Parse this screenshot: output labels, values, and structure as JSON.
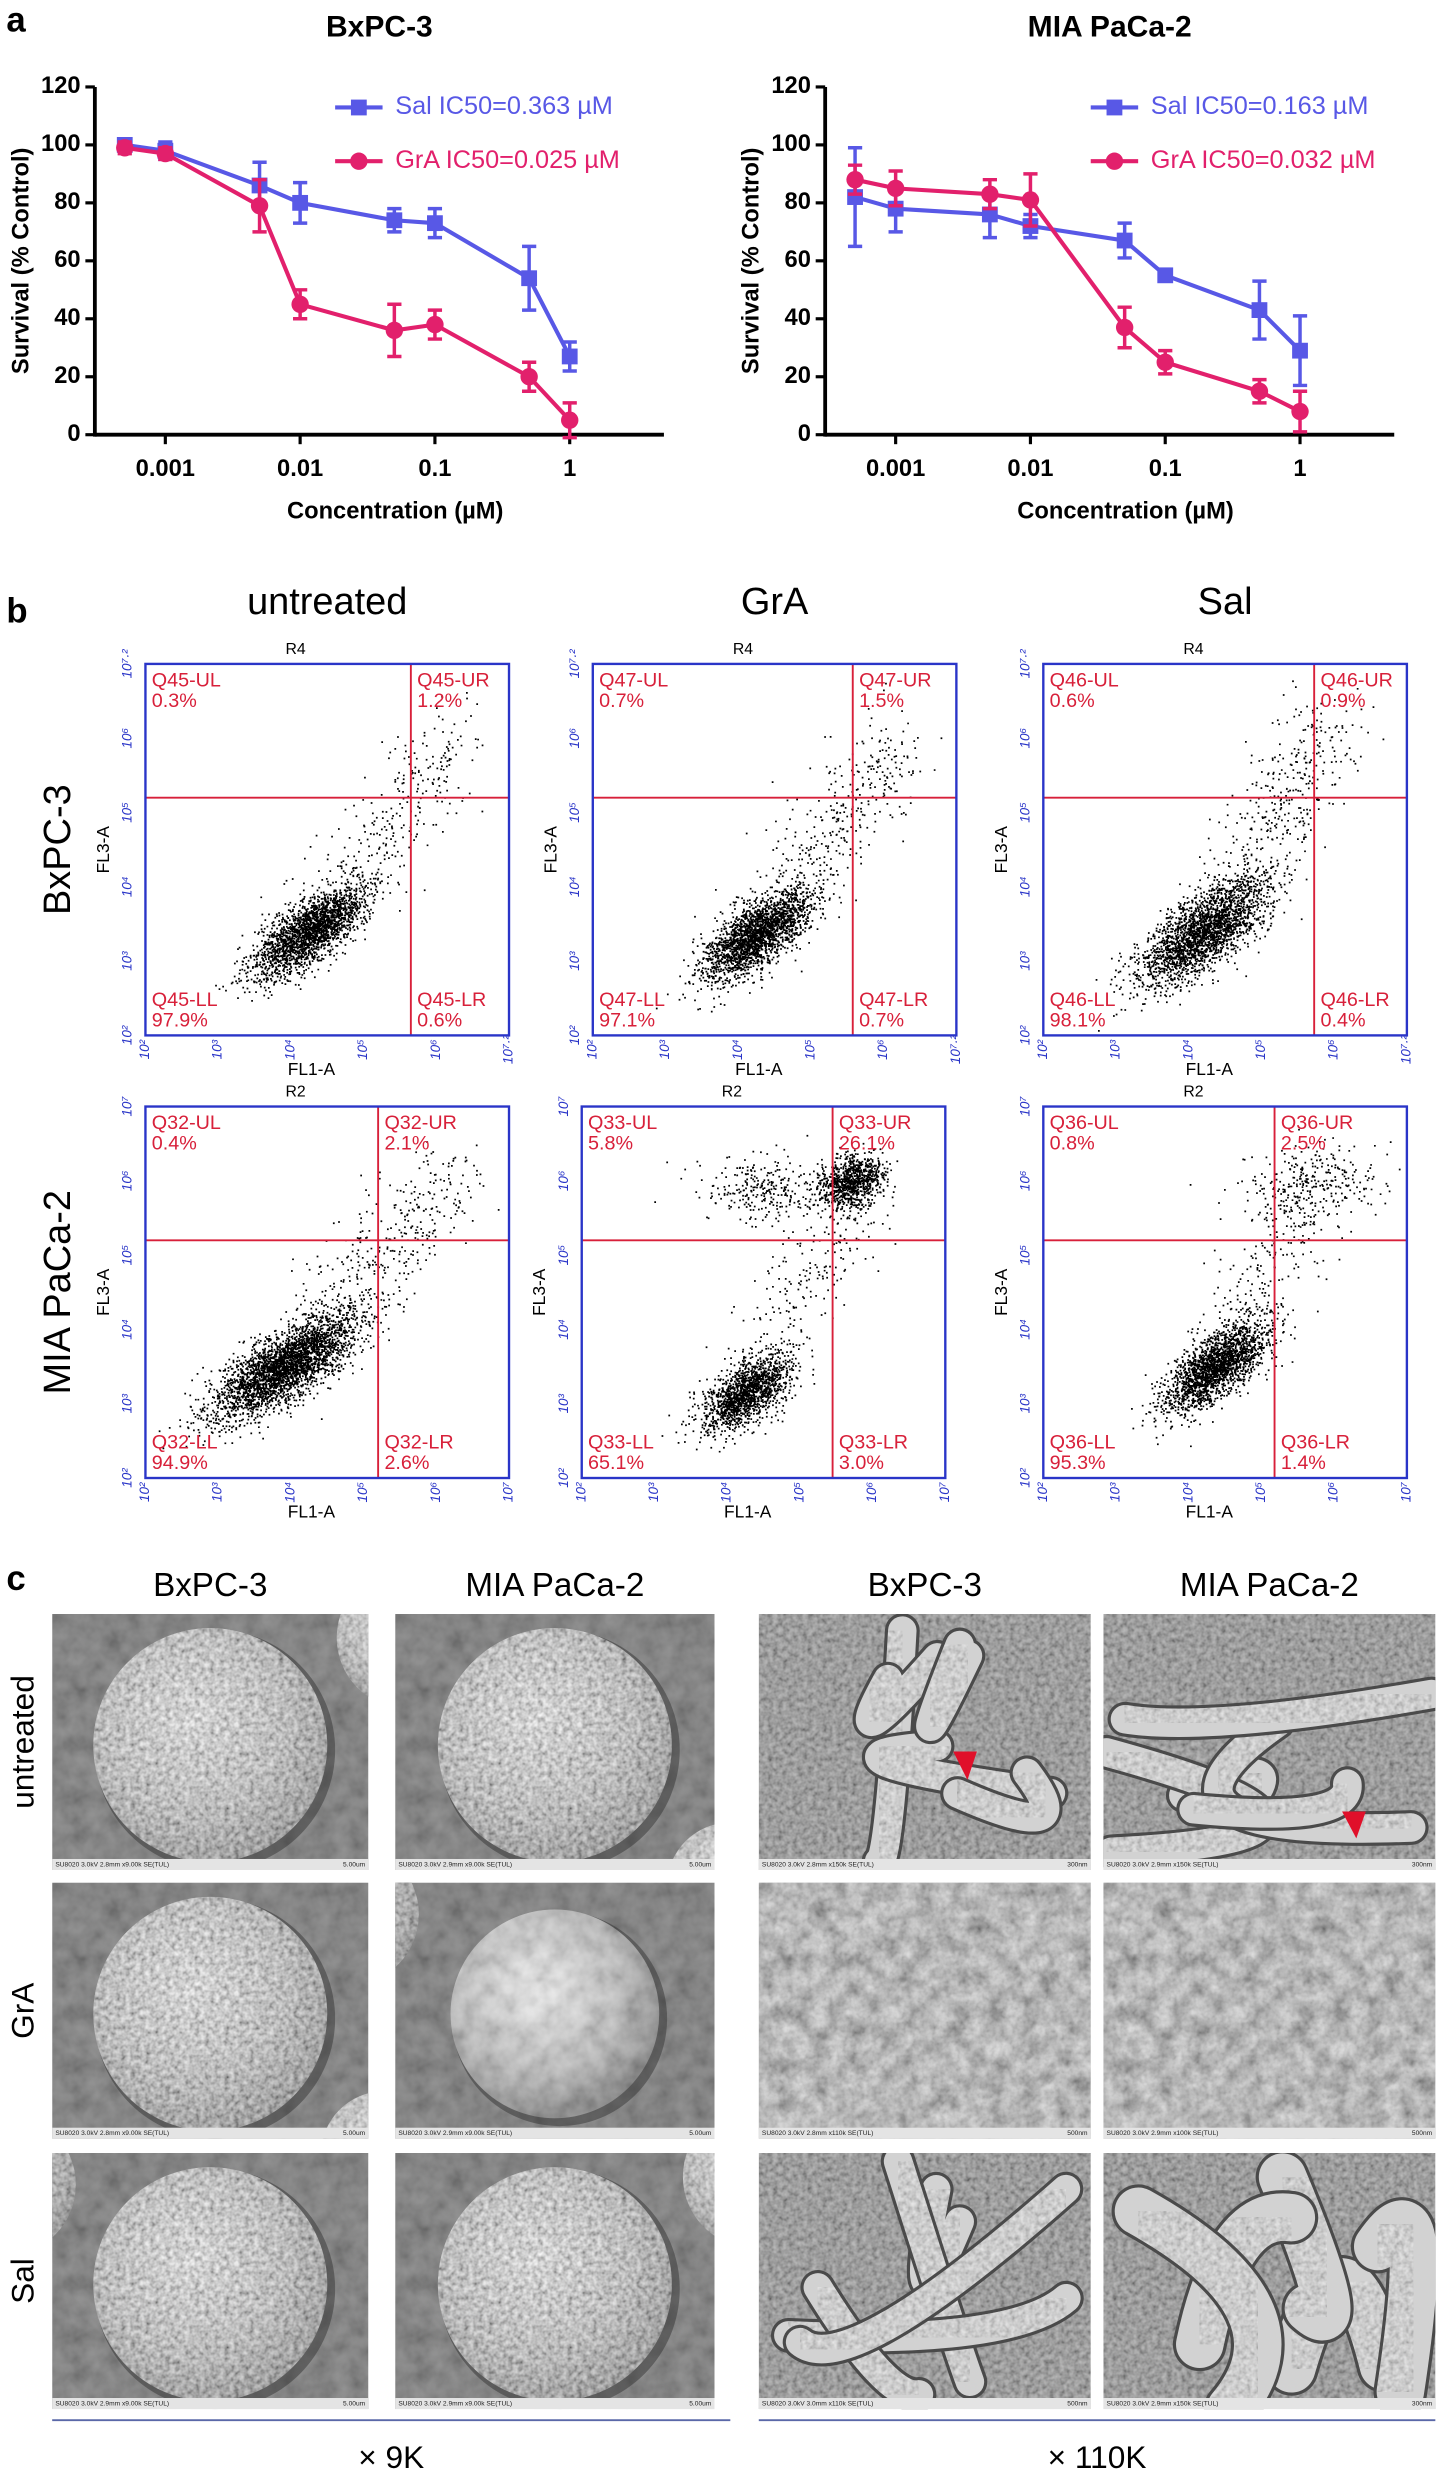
{
  "panel_labels": [
    "a",
    "b",
    "c"
  ],
  "chart_data": [
    {
      "type": "line",
      "title": "BxPC-3",
      "x_label": "Concentration (µM)",
      "y_label": "Survival (% Control)",
      "log_x": true,
      "x": [
        0.0005,
        0.001,
        0.005,
        0.01,
        0.05,
        0.1,
        0.5,
        1
      ],
      "xlim": [
        0.0003,
        5
      ],
      "xticks": [
        0.001,
        0.01,
        0.1,
        1
      ],
      "ylim": [
        0,
        120
      ],
      "yticks": [
        0,
        20,
        40,
        60,
        80,
        100,
        120
      ],
      "series": [
        {
          "name": "Sal  IC50=0.363 µM",
          "color": "#5858e6",
          "marker": "square",
          "values": [
            100,
            98,
            86,
            80,
            74,
            73,
            54,
            27
          ],
          "errors": [
            2,
            3,
            8,
            7,
            4,
            5,
            11,
            5
          ]
        },
        {
          "name": "GrA IC50=0.025 µM",
          "color": "#e2206c",
          "marker": "circle",
          "values": [
            99,
            97,
            79,
            45,
            36,
            38,
            20,
            5
          ],
          "errors": [
            2,
            2,
            9,
            5,
            9,
            5,
            5,
            6
          ]
        }
      ]
    },
    {
      "type": "line",
      "title": "MIA PaCa-2",
      "x_label": "Concentration (µM)",
      "y_label": "Survival (% Control)",
      "log_x": true,
      "x": [
        0.0005,
        0.001,
        0.005,
        0.01,
        0.05,
        0.1,
        0.5,
        1
      ],
      "xlim": [
        0.0003,
        5
      ],
      "xticks": [
        0.001,
        0.01,
        0.1,
        1
      ],
      "ylim": [
        0,
        120
      ],
      "yticks": [
        0,
        20,
        40,
        60,
        80,
        100,
        120
      ],
      "series": [
        {
          "name": "Sal  IC50=0.163 µM",
          "color": "#5858e6",
          "marker": "square",
          "values": [
            82,
            78,
            76,
            72,
            67,
            55,
            43,
            29
          ],
          "errors": [
            17,
            8,
            8,
            4,
            6,
            2,
            10,
            12
          ]
        },
        {
          "name": "GrA IC50=0.032 µM",
          "color": "#e2206c",
          "marker": "circle",
          "values": [
            88,
            85,
            83,
            81,
            37,
            25,
            15,
            8
          ],
          "errors": [
            5,
            6,
            5,
            9,
            7,
            4,
            4,
            7
          ]
        }
      ]
    }
  ],
  "flow": {
    "columns": [
      "untreated",
      "GrA",
      "Sal"
    ],
    "x_label": "FL1-A",
    "y_label": "FL3-A",
    "rows": [
      {
        "label": "BxPC-3",
        "gate": "R4",
        "x_tick_labels": [
          "10²",
          "10³",
          "10⁴",
          "10⁵",
          "10⁶",
          "10⁷·²"
        ],
        "y_tick_labels": [
          "10²",
          "10³",
          "10⁴",
          "10⁵",
          "10⁶",
          "10⁷·²"
        ],
        "plots": [
          {
            "quadrants": [
              {
                "name": "Q45-UL",
                "value": "0.3%"
              },
              {
                "name": "Q45-UR",
                "value": "1.2%"
              },
              {
                "name": "Q45-LL",
                "value": "97.9%"
              },
              {
                "name": "Q45-LR",
                "value": "0.6%"
              }
            ]
          },
          {
            "quadrants": [
              {
                "name": "Q47-UL",
                "value": "0.7%"
              },
              {
                "name": "Q47-UR",
                "value": "1.5%"
              },
              {
                "name": "Q47-LL",
                "value": "97.1%"
              },
              {
                "name": "Q47-LR",
                "value": "0.7%"
              }
            ]
          },
          {
            "quadrants": [
              {
                "name": "Q46-UL",
                "value": "0.6%"
              },
              {
                "name": "Q46-UR",
                "value": "0.9%"
              },
              {
                "name": "Q46-LL",
                "value": "98.1%"
              },
              {
                "name": "Q46-LR",
                "value": "0.4%"
              }
            ]
          }
        ]
      },
      {
        "label": "MIA PaCa-2",
        "gate": "R2",
        "x_tick_labels": [
          "10²",
          "10³",
          "10⁴",
          "10⁵",
          "10⁶",
          "10⁷"
        ],
        "y_tick_labels": [
          "10²",
          "10³",
          "10⁴",
          "10⁵",
          "10⁶",
          "10⁷"
        ],
        "plots": [
          {
            "quadrants": [
              {
                "name": "Q32-UL",
                "value": "0.4%"
              },
              {
                "name": "Q32-UR",
                "value": "2.1%"
              },
              {
                "name": "Q32-LL",
                "value": "94.9%"
              },
              {
                "name": "Q32-LR",
                "value": "2.6%"
              }
            ]
          },
          {
            "quadrants": [
              {
                "name": "Q33-UL",
                "value": "5.8%"
              },
              {
                "name": "Q33-UR",
                "value": "26.1%"
              },
              {
                "name": "Q33-LL",
                "value": "65.1%"
              },
              {
                "name": "Q33-LR",
                "value": "3.0%"
              }
            ]
          },
          {
            "quadrants": [
              {
                "name": "Q36-UL",
                "value": "0.8%"
              },
              {
                "name": "Q36-UR",
                "value": "2.5%"
              },
              {
                "name": "Q36-LL",
                "value": "95.3%"
              },
              {
                "name": "Q36-LR",
                "value": "1.4%"
              }
            ]
          }
        ]
      }
    ]
  },
  "sem": {
    "columns": [
      "BxPC-3",
      "MIA PaCa-2",
      "BxPC-3",
      "MIA PaCa-2"
    ],
    "rows": [
      "untreated",
      "GrA",
      "Sal"
    ],
    "magnifications": [
      "× 9K",
      "× 110K"
    ],
    "images": [
      [
        {
          "info": "SU8020 3.0kV 2.8mm x9.00k SE(TUL)",
          "scale": "5.00um"
        },
        {
          "info": "SU8020 3.0kV 2.9mm x9.00k SE(TUL)",
          "scale": "5.00um"
        },
        {
          "info": "SU8020 3.0kV 2.8mm x150k SE(TUL)",
          "scale": "300nm"
        },
        {
          "info": "SU8020 3.0kV 2.9mm x150k SE(TUL)",
          "scale": "300nm"
        }
      ],
      [
        {
          "info": "SU8020 3.0kV 2.8mm x9.00k SE(TUL)",
          "scale": "5.00um"
        },
        {
          "info": "SU8020 3.0kV 2.9mm x9.00k SE(TUL)",
          "scale": "5.00um"
        },
        {
          "info": "SU8020 3.0kV 2.8mm x110k SE(TUL)",
          "scale": "500nm"
        },
        {
          "info": "SU8020 3.0kV 2.9mm x100k SE(TUL)",
          "scale": "500nm"
        }
      ],
      [
        {
          "info": "SU8020 3.0kV 2.9mm x9.00k SE(TUL)",
          "scale": "5.00um"
        },
        {
          "info": "SU8020 3.0kV 2.9mm x9.00k SE(TUL)",
          "scale": "5.00um"
        },
        {
          "info": "SU8020 3.0kV 3.0mm x110k SE(TUL)",
          "scale": "500nm"
        },
        {
          "info": "SU8020 3.0kV 2.9mm x150k SE(TUL)",
          "scale": "300nm"
        }
      ]
    ]
  }
}
